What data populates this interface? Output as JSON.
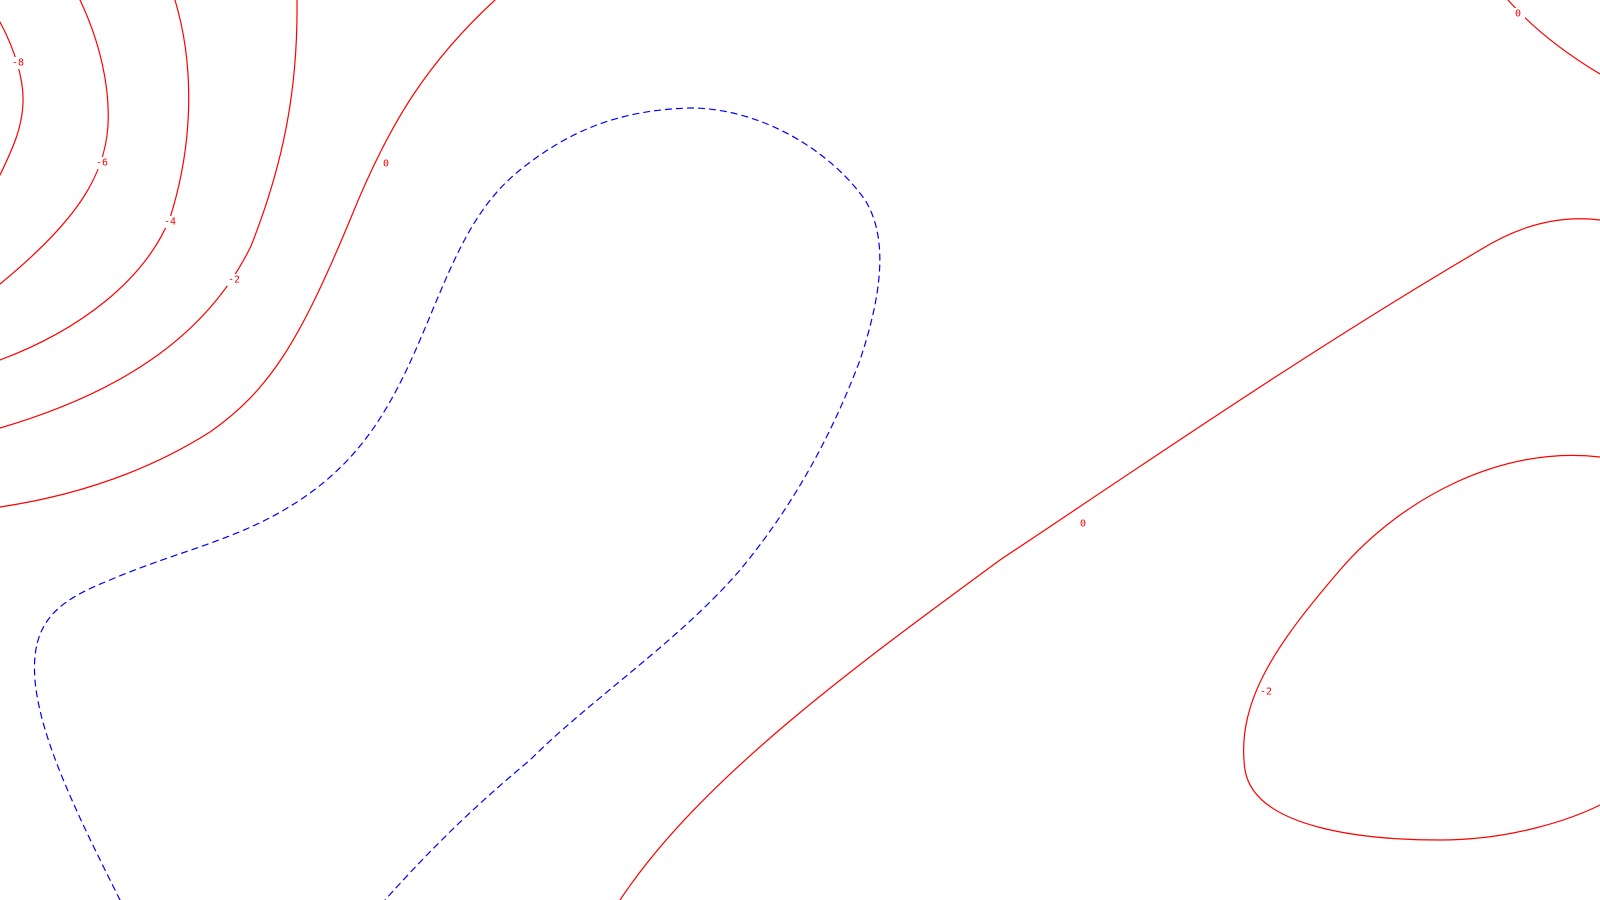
{
  "chart_data": {
    "type": "contour",
    "title": "",
    "xlabel": "",
    "ylabel": "",
    "grid": false,
    "legend": "none",
    "contour_levels": [
      -8,
      -6,
      -4,
      -2,
      0
    ],
    "colors": {
      "solid_contour": "#ff0000",
      "dashed_contour": "#0000ff",
      "background": "#ffffff"
    },
    "line_styles": {
      "solid": "red contour lines",
      "dashed": "blue dashed contour line"
    },
    "labels": [
      {
        "id": "label_m8",
        "text": "-8"
      },
      {
        "id": "label_m6",
        "text": "-6"
      },
      {
        "id": "label_m4",
        "text": "-4"
      },
      {
        "id": "label_m2_left",
        "text": "-2"
      },
      {
        "id": "label_0_left",
        "text": "0"
      },
      {
        "id": "label_0_top_right",
        "text": "0"
      },
      {
        "id": "label_0_center",
        "text": "0"
      },
      {
        "id": "label_m2_right",
        "text": "-2"
      }
    ]
  }
}
